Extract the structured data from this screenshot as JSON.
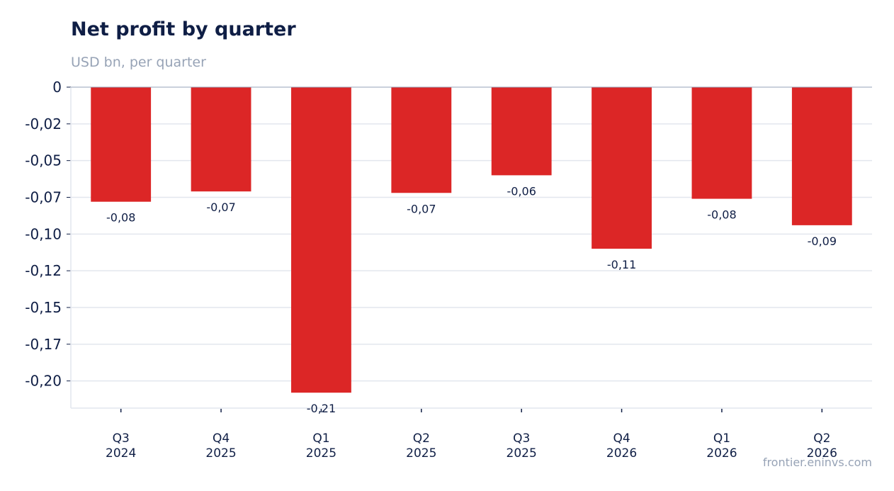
{
  "header": {
    "title": "Net profit by quarter",
    "subtitle": "USD bn, per quarter"
  },
  "footer": {
    "source": "frontier.eninvs.com"
  },
  "colors": {
    "bar": "#dc2626",
    "grid": "#e2e6ee",
    "axis": "#94a3b8",
    "text": "#0f1e45",
    "muted": "#97a3b6"
  },
  "chart_data": {
    "type": "bar",
    "title": "Net profit by quarter",
    "subtitle": "USD bn, per quarter",
    "xlabel": "",
    "ylabel": "",
    "categories": [
      [
        "Q3",
        "2024"
      ],
      [
        "Q4",
        "2025"
      ],
      [
        "Q1",
        "2025"
      ],
      [
        "Q2",
        "2025"
      ],
      [
        "Q3",
        "2025"
      ],
      [
        "Q4",
        "2026"
      ],
      [
        "Q1",
        "2026"
      ],
      [
        "Q2",
        "2026"
      ]
    ],
    "values": [
      -0.078,
      -0.071,
      -0.208,
      -0.072,
      -0.06,
      -0.11,
      -0.076,
      -0.094
    ],
    "data_labels": [
      "-0,08",
      "-0,07",
      "-0,21",
      "-0,07",
      "-0,06",
      "-0,11",
      "-0,08",
      "-0,09"
    ],
    "y_ticks": [
      0,
      -0.025,
      -0.05,
      -0.075,
      -0.1,
      -0.125,
      -0.15,
      -0.175,
      -0.2
    ],
    "y_tick_labels": [
      "0",
      "-0,02",
      "-0,05",
      "-0,07",
      "-0,10",
      "-0,12",
      "-0,15",
      "-0,17",
      "-0,20"
    ],
    "ylim": [
      -0.2185,
      0
    ],
    "grid": true,
    "legend": "none"
  }
}
